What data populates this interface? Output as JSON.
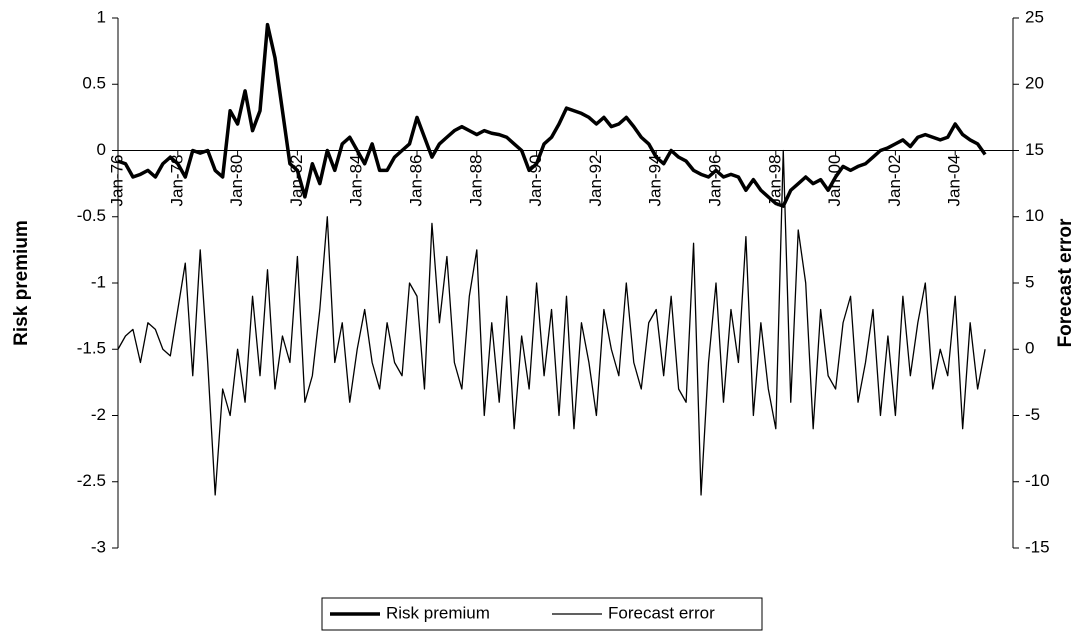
{
  "chart_data": {
    "type": "line",
    "categories": [
      "Jan-76",
      null,
      null,
      null,
      null,
      null,
      null,
      null,
      "Jan-78",
      null,
      null,
      null,
      null,
      null,
      null,
      null,
      "Jan-80",
      null,
      null,
      null,
      null,
      null,
      null,
      null,
      "Jan-82",
      null,
      null,
      null,
      null,
      null,
      null,
      null,
      "Jan-84",
      null,
      null,
      null,
      null,
      null,
      null,
      null,
      "Jan-86",
      null,
      null,
      null,
      null,
      null,
      null,
      null,
      "Jan-88",
      null,
      null,
      null,
      null,
      null,
      null,
      null,
      "Jan-90",
      null,
      null,
      null,
      null,
      null,
      null,
      null,
      "Jan-92",
      null,
      null,
      null,
      null,
      null,
      null,
      null,
      "Jan-94",
      null,
      null,
      null,
      null,
      null,
      null,
      null,
      "Jan-96",
      null,
      null,
      null,
      null,
      null,
      null,
      null,
      "Jan-98",
      null,
      null,
      null,
      null,
      null,
      null,
      null,
      "Jan-00",
      null,
      null,
      null,
      null,
      null,
      null,
      null,
      "Jan-02",
      null,
      null,
      null,
      null,
      null,
      null,
      null,
      "Jan-04",
      null,
      null,
      null,
      null
    ],
    "series": [
      {
        "name": "Risk premium",
        "color": "#000000",
        "values": [
          -0.08,
          -0.1,
          -0.2,
          -0.18,
          -0.15,
          -0.2,
          -0.1,
          -0.05,
          -0.1,
          -0.2,
          0.0,
          -0.02,
          0.0,
          -0.15,
          -0.2,
          0.3,
          0.2,
          0.45,
          0.15,
          0.3,
          0.95,
          0.7,
          0.3,
          -0.1,
          -0.15,
          -0.35,
          -0.1,
          -0.25,
          0.0,
          -0.15,
          0.05,
          0.1,
          0.0,
          -0.1,
          0.05,
          -0.15,
          -0.15,
          -0.05,
          0.0,
          0.05,
          0.25,
          0.1,
          -0.05,
          0.05,
          0.1,
          0.15,
          0.18,
          0.15,
          0.12,
          0.15,
          0.13,
          0.12,
          0.1,
          0.05,
          0.0,
          -0.15,
          -0.1,
          0.05,
          0.1,
          0.2,
          0.32,
          0.3,
          0.28,
          0.25,
          0.2,
          0.25,
          0.18,
          0.2,
          0.25,
          0.18,
          0.1,
          0.05,
          -0.05,
          -0.1,
          0.0,
          -0.05,
          -0.08,
          -0.15,
          -0.18,
          -0.2,
          -0.15,
          -0.2,
          -0.18,
          -0.2,
          -0.3,
          -0.22,
          -0.3,
          -0.35,
          -0.4,
          -0.42,
          -0.3,
          -0.25,
          -0.2,
          -0.25,
          -0.22,
          -0.3,
          -0.2,
          -0.12,
          -0.15,
          -0.12,
          -0.1,
          -0.05,
          0.0,
          0.02,
          0.05,
          0.08,
          0.03,
          0.1,
          0.12,
          0.1,
          0.08,
          0.1,
          0.2,
          0.12,
          0.08,
          0.05,
          -0.03
        ]
      },
      {
        "name": "Forecast error",
        "color": "#000000",
        "axis": "y2",
        "values": [
          0,
          1,
          1.5,
          -1,
          2,
          1.5,
          0,
          -0.5,
          3,
          6.5,
          -2,
          7.5,
          -1,
          -11,
          -3,
          -5,
          0,
          -4,
          4,
          -2,
          6,
          -3,
          1,
          -1,
          7,
          -4,
          -2,
          3,
          10,
          -1,
          2,
          -4,
          0,
          3,
          -1,
          -3,
          2,
          -1,
          -2,
          5,
          4,
          -3,
          9.5,
          2,
          7,
          -1,
          -3,
          4,
          7.5,
          -5,
          2,
          -4,
          4,
          -6,
          1,
          -3,
          5,
          -2,
          3,
          -5,
          4,
          -6,
          2,
          -1,
          -5,
          3,
          0,
          -2,
          5,
          -1,
          -3,
          2,
          3,
          -2,
          4,
          -3,
          -4,
          8,
          -11,
          -1,
          5,
          -4,
          3,
          -1,
          8.5,
          -5,
          2,
          -3,
          -6,
          15,
          -4,
          9,
          5,
          -6,
          3,
          -2,
          -3,
          2,
          4,
          -4,
          -1,
          3,
          -5,
          1,
          -5,
          4,
          -2,
          2,
          5,
          -3,
          0,
          -2,
          4,
          -6,
          2,
          -3,
          0
        ]
      }
    ],
    "y_label": "Risk premium",
    "y2_label": "Forecast error",
    "ylim": [
      -3,
      1
    ],
    "yticks": [
      -3,
      -2.5,
      -2,
      -1.5,
      -1,
      -0.5,
      0,
      0.5,
      1
    ],
    "y2lim": [
      -15,
      25
    ],
    "y2ticks": [
      -15,
      -10,
      -5,
      0,
      5,
      10,
      15,
      20,
      25
    ],
    "legend": "bottom"
  }
}
